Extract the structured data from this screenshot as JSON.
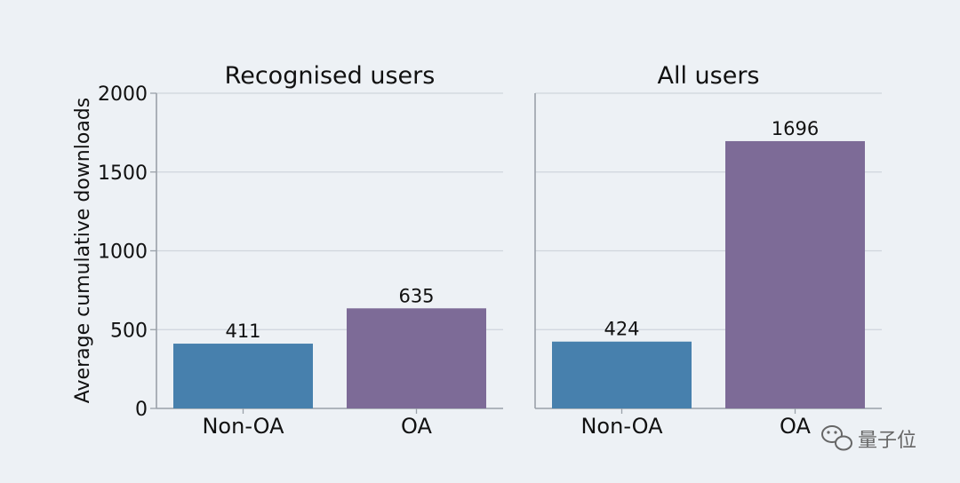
{
  "chart_data": {
    "type": "bar",
    "ylabel": "Average cumulative downloads",
    "ylim": [
      0,
      2000
    ],
    "yticks": [
      0,
      500,
      1000,
      1500,
      2000
    ],
    "grid": true,
    "panels": [
      {
        "title": "Recognised users",
        "categories": [
          "Non-OA",
          "OA"
        ],
        "values": [
          411,
          635
        ],
        "value_labels": [
          "411",
          "635"
        ]
      },
      {
        "title": "All users",
        "categories": [
          "Non-OA",
          "OA"
        ],
        "values": [
          424,
          1696
        ],
        "value_labels": [
          "424",
          "1696"
        ]
      }
    ]
  },
  "colors": {
    "Non-OA": "#4780ad",
    "OA": "#7d6b97",
    "grid": "#cfd5dc",
    "axis": "#9aa1a9"
  },
  "watermark": {
    "text": "量子位",
    "icon": "wechat-icon"
  }
}
